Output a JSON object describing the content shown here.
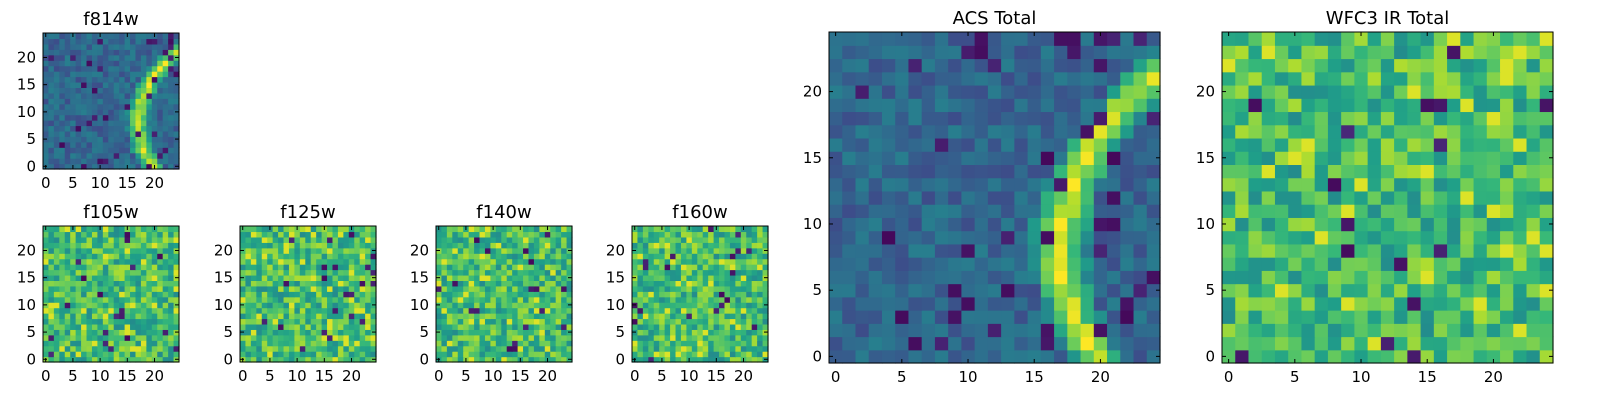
{
  "chart_data": {
    "type": "heatmap",
    "colormap": "viridis",
    "grid_size": 25,
    "panels": [
      {
        "id": "f814w",
        "title": "f814w",
        "kind": "acs",
        "xticks": [
          0,
          5,
          10,
          15,
          20
        ],
        "yticks": [
          0,
          5,
          10,
          15,
          20
        ],
        "xlim": [
          -0.5,
          24.5
        ],
        "ylim": [
          -0.5,
          24.5
        ]
      },
      {
        "id": "f105w",
        "title": "f105w",
        "kind": "ir",
        "xticks": [
          0,
          5,
          10,
          15,
          20
        ],
        "yticks": [
          0,
          5,
          10,
          15,
          20
        ],
        "xlim": [
          -0.5,
          24.5
        ],
        "ylim": [
          -0.5,
          24.5
        ]
      },
      {
        "id": "f125w",
        "title": "f125w",
        "kind": "ir",
        "xticks": [
          0,
          5,
          10,
          15,
          20
        ],
        "yticks": [
          0,
          5,
          10,
          15,
          20
        ],
        "xlim": [
          -0.5,
          24.5
        ],
        "ylim": [
          -0.5,
          24.5
        ]
      },
      {
        "id": "f140w",
        "title": "f140w",
        "kind": "ir",
        "xticks": [
          0,
          5,
          10,
          15,
          20
        ],
        "yticks": [
          0,
          5,
          10,
          15,
          20
        ],
        "xlim": [
          -0.5,
          24.5
        ],
        "ylim": [
          -0.5,
          24.5
        ]
      },
      {
        "id": "f160w",
        "title": "f160w",
        "kind": "ir",
        "xticks": [
          0,
          5,
          10,
          15,
          20
        ],
        "yticks": [
          0,
          5,
          10,
          15,
          20
        ],
        "xlim": [
          -0.5,
          24.5
        ],
        "ylim": [
          -0.5,
          24.5
        ]
      },
      {
        "id": "acs-total",
        "title": "ACS Total",
        "kind": "acs",
        "xticks": [
          0,
          5,
          10,
          15,
          20
        ],
        "yticks": [
          0,
          5,
          10,
          15,
          20
        ],
        "xlim": [
          -0.5,
          24.5
        ],
        "ylim": [
          -0.5,
          24.5
        ]
      },
      {
        "id": "wfc3-ir-total",
        "title": "WFC3 IR Total",
        "kind": "ir",
        "xticks": [
          0,
          5,
          10,
          15,
          20
        ],
        "yticks": [
          0,
          5,
          10,
          15,
          20
        ],
        "xlim": [
          -0.5,
          24.5
        ],
        "ylim": [
          -0.5,
          24.5
        ]
      }
    ]
  }
}
